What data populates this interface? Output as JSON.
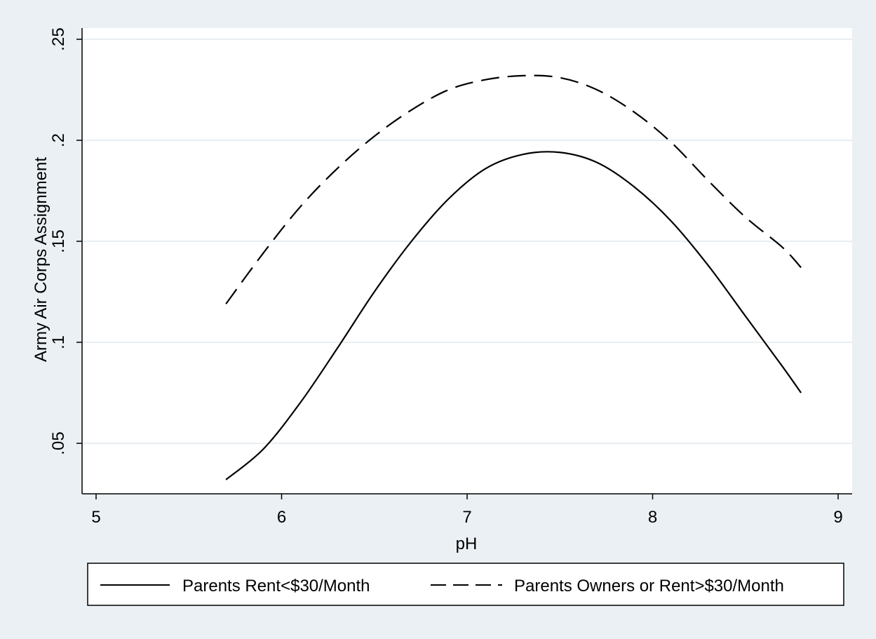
{
  "chart_data": {
    "type": "line",
    "title": "",
    "xlabel": "pH",
    "ylabel": "Army Air Corps Assignment",
    "xlim": [
      5,
      9
    ],
    "ylim": [
      0.03,
      0.255
    ],
    "x_ticks": [
      5,
      6,
      7,
      8,
      9
    ],
    "x_tick_labels": [
      "5",
      "6",
      "7",
      "8",
      "9"
    ],
    "y_ticks": [
      0.05,
      0.1,
      0.15,
      0.2,
      0.25
    ],
    "y_tick_labels": [
      ".05",
      ".1",
      ".15",
      ".2",
      ".25"
    ],
    "grid": true,
    "legend_position": "bottom",
    "series": [
      {
        "name": "Parents Rent<$30/Month",
        "style": "solid",
        "x": [
          5.7,
          5.9,
          6.1,
          6.3,
          6.5,
          6.7,
          6.9,
          7.1,
          7.3,
          7.5,
          7.7,
          7.9,
          8.1,
          8.3,
          8.5,
          8.7,
          8.8
        ],
        "y": [
          0.032,
          0.047,
          0.07,
          0.097,
          0.125,
          0.15,
          0.171,
          0.186,
          0.193,
          0.194,
          0.189,
          0.177,
          0.16,
          0.138,
          0.113,
          0.088,
          0.075
        ]
      },
      {
        "name": "Parents Owners or Rent>$30/Month",
        "style": "dashed",
        "x": [
          5.7,
          5.9,
          6.1,
          6.3,
          6.5,
          6.7,
          6.9,
          7.1,
          7.3,
          7.5,
          7.7,
          7.9,
          8.1,
          8.3,
          8.5,
          8.7,
          8.8
        ],
        "y": [
          0.119,
          0.144,
          0.167,
          0.186,
          0.202,
          0.215,
          0.225,
          0.23,
          0.232,
          0.231,
          0.225,
          0.214,
          0.199,
          0.18,
          0.162,
          0.147,
          0.137
        ]
      }
    ]
  }
}
